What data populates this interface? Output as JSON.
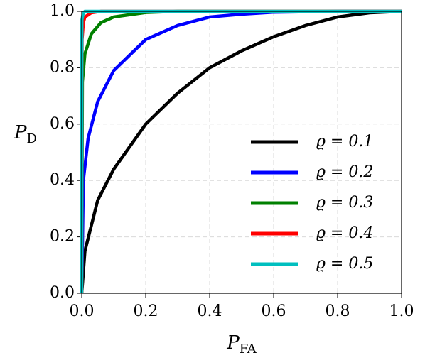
{
  "chart_data": {
    "type": "line",
    "xlabel": "P",
    "xlabel_sub": "FA",
    "ylabel": "P",
    "ylabel_sub": "D",
    "xlim": [
      0,
      1
    ],
    "ylim": [
      0,
      1
    ],
    "xticks": [
      {
        "value": 0,
        "label": "0.0"
      },
      0.2,
      0.4,
      0.6,
      0.8,
      {
        "value": 1,
        "label": "1.0"
      }
    ],
    "yticks": [
      {
        "value": 0,
        "label": "0.0"
      },
      0.2,
      0.4,
      0.6,
      0.8,
      {
        "value": 1,
        "label": "1.0"
      }
    ],
    "grid": true,
    "legend": "lower right",
    "series": [
      {
        "name": "ϱ = 0.1",
        "color": "#000000",
        "x": [
          0,
          0.01,
          0.05,
          0.1,
          0.2,
          0.3,
          0.4,
          0.5,
          0.6,
          0.7,
          0.8,
          0.9,
          1
        ],
        "values": [
          0,
          0.15,
          0.33,
          0.44,
          0.6,
          0.71,
          0.8,
          0.86,
          0.91,
          0.95,
          0.98,
          0.995,
          1
        ]
      },
      {
        "name": "ϱ = 0.2",
        "color": "#0000ff",
        "x": [
          0,
          0.005,
          0.02,
          0.05,
          0.1,
          0.2,
          0.3,
          0.4,
          0.5,
          0.6,
          0.8,
          1
        ],
        "values": [
          0,
          0.4,
          0.55,
          0.68,
          0.79,
          0.9,
          0.95,
          0.98,
          0.99,
          0.997,
          1,
          1
        ]
      },
      {
        "name": "ϱ = 0.3",
        "color": "#008000",
        "x": [
          0,
          0.002,
          0.01,
          0.03,
          0.06,
          0.1,
          0.2,
          0.3,
          1
        ],
        "values": [
          0,
          0.75,
          0.85,
          0.92,
          0.96,
          0.98,
          0.996,
          1,
          1
        ]
      },
      {
        "name": "ϱ = 0.4",
        "color": "#ff0000",
        "x": [
          0,
          0.001,
          0.005,
          0.01,
          0.03,
          0.06,
          1
        ],
        "values": [
          0,
          0.9,
          0.96,
          0.98,
          0.995,
          1,
          1
        ]
      },
      {
        "name": "ϱ = 0.5",
        "color": "#00bfbf",
        "x": [
          0,
          0.0005,
          0.005,
          0.01,
          1
        ],
        "values": [
          0,
          0.97,
          0.995,
          1,
          1
        ]
      }
    ]
  }
}
